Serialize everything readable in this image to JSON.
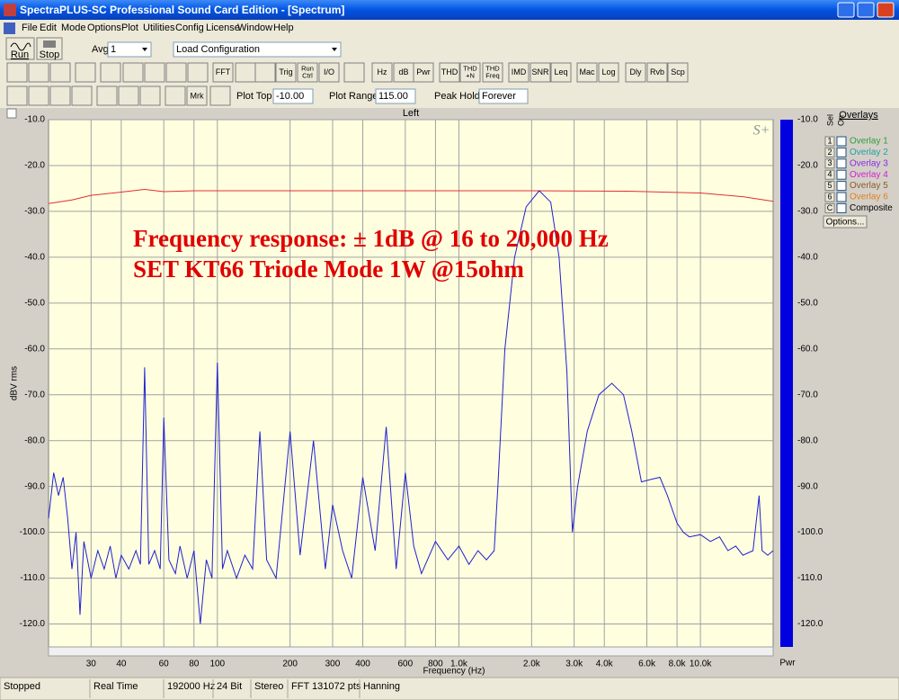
{
  "window": {
    "title": "SpectraPLUS-SC Professional Sound Card Edition - [Spectrum]"
  },
  "menu": [
    "File",
    "Edit",
    "Mode",
    "Options",
    "Plot",
    "Utilities",
    "Config",
    "License",
    "Window",
    "Help"
  ],
  "toolbar": {
    "run": "Run",
    "stop": "Stop",
    "avg_label": "Avg",
    "avg_value": "1",
    "config": "Load Configuration",
    "buttons": [
      "FFT",
      "Trig",
      "Run Ctrl",
      "I/O",
      "Hz",
      "dB",
      "Pwr",
      "THD",
      "THD +N",
      "THD Freq",
      "IMD",
      "SNR",
      "Leq",
      "Mac",
      "Log",
      "Dly",
      "Rvb",
      "Scp"
    ],
    "mrk": "Mrk",
    "plot_top_label": "Plot Top:",
    "plot_top": "-10.00",
    "plot_range_label": "Plot Range:",
    "plot_range": "115.00",
    "peak_hold_label": "Peak Hold:",
    "peak_hold": "Forever"
  },
  "overlays": {
    "title": "Overlays",
    "sel": "Sel",
    "on": "On",
    "items": [
      {
        "key": "1",
        "name": "Overlay 1",
        "color": "#2e9b3a"
      },
      {
        "key": "2",
        "name": "Overlay 2",
        "color": "#1fa0a0"
      },
      {
        "key": "3",
        "name": "Overlay 3",
        "color": "#8a2be2"
      },
      {
        "key": "4",
        "name": "Overlay 4",
        "color": "#d020d0"
      },
      {
        "key": "5",
        "name": "Overlay 5",
        "color": "#8b5a2b"
      },
      {
        "key": "6",
        "name": "Overlay 6",
        "color": "#e08020"
      },
      {
        "key": "C",
        "name": "Composite",
        "color": "#000000"
      }
    ],
    "options": "Options..."
  },
  "status": [
    "Stopped",
    "Real Time",
    "192000 Hz",
    "24 Bit",
    "Stereo",
    "FFT 131072 pts",
    "Hanning"
  ],
  "chart_data": {
    "type": "line",
    "channel": "Left",
    "xlabel": "Frequency (Hz)",
    "ylabel": "dBV rms",
    "meter_label": "Pwr",
    "meter_color": "#0000e0",
    "logo": "S+",
    "annotations": [
      "Frequency response: ± 1dB @ 16 to 20,000 Hz",
      "SET KT66 Triode Mode 1W @15ohm"
    ],
    "annotation_color": "#e00000",
    "xscale": "log",
    "xlim": [
      20,
      20000
    ],
    "ylim": [
      -125,
      -10
    ],
    "grid": true,
    "xticks": [
      30,
      40,
      60,
      80,
      100,
      200,
      300,
      400,
      600,
      800,
      {
        "value": 1000,
        "label": "1.0k"
      },
      {
        "value": 2000,
        "label": "2.0k"
      },
      {
        "value": 3000,
        "label": "3.0k"
      },
      {
        "value": 4000,
        "label": "4.0k"
      },
      {
        "value": 6000,
        "label": "6.0k"
      },
      {
        "value": 8000,
        "label": "8.0k"
      },
      {
        "value": 10000,
        "label": "10.0k"
      }
    ],
    "yticks": [
      {
        "value": -10,
        "label": "-10.0"
      },
      {
        "value": -20,
        "label": "-20.0"
      },
      {
        "value": -30,
        "label": "-30.0"
      },
      {
        "value": -40,
        "label": "-40.0"
      },
      {
        "value": -50,
        "label": "-50.0"
      },
      {
        "value": -60,
        "label": "-60.0"
      },
      {
        "value": -70,
        "label": "-70.0"
      },
      {
        "value": -80,
        "label": "-80.0"
      },
      {
        "value": -90,
        "label": "-90.0"
      },
      {
        "value": -100,
        "label": "-100.0"
      },
      {
        "value": -110,
        "label": "-110.0"
      },
      {
        "value": -120,
        "label": "-120.0"
      }
    ],
    "series": [
      {
        "color": "#e03030",
        "x": [
          20,
          25,
          30,
          40,
          50,
          60,
          80,
          100,
          200,
          500,
          1000,
          2000,
          5000,
          10000,
          15000,
          20000
        ],
        "values": [
          -28.3,
          -27.5,
          -26.5,
          -25.8,
          -25.2,
          -25.7,
          -25.5,
          -25.5,
          -25.5,
          -25.5,
          -25.5,
          -25.5,
          -25.6,
          -26.0,
          -26.8,
          -27.8
        ]
      },
      {
        "color": "#2020d0",
        "x": [
          20,
          21,
          22,
          23,
          24,
          25,
          26,
          27,
          28,
          30,
          32,
          34,
          36,
          38,
          40,
          43,
          46,
          48,
          50,
          52,
          55,
          58,
          60,
          63,
          67,
          70,
          75,
          80,
          85,
          90,
          95,
          100,
          105,
          110,
          120,
          130,
          140,
          150,
          160,
          175,
          200,
          220,
          250,
          280,
          300,
          330,
          360,
          400,
          450,
          500,
          550,
          600,
          650,
          700,
          800,
          900,
          1000,
          1100,
          1200,
          1300,
          1400,
          1450,
          1550,
          1700,
          1900,
          2150,
          2400,
          2600,
          2800,
          2950,
          3100,
          3400,
          3800,
          4300,
          4800,
          5200,
          5700,
          6200,
          6800,
          7300,
          8000,
          8500,
          9000,
          10000,
          11000,
          12000,
          13000,
          14000,
          15000,
          16500,
          17500,
          18000,
          19000,
          20000
        ],
        "values": [
          -97,
          -87,
          -92,
          -88,
          -97,
          -108,
          -100,
          -118,
          -102,
          -110,
          -104,
          -108,
          -103,
          -110,
          -105,
          -108,
          -104,
          -107,
          -64,
          -107,
          -104,
          -108,
          -75,
          -106,
          -109,
          -103,
          -110,
          -104,
          -120,
          -106,
          -110,
          -63,
          -108,
          -104,
          -110,
          -105,
          -108,
          -78,
          -106,
          -110,
          -78,
          -105,
          -80,
          -108,
          -94,
          -104,
          -110,
          -88,
          -104,
          -77,
          -108,
          -87,
          -103,
          -109,
          -102,
          -106,
          -103,
          -107,
          -104,
          -106,
          -104,
          -90,
          -60,
          -40,
          -29,
          -25.5,
          -28,
          -40,
          -65,
          -100,
          -90,
          -78,
          -70,
          -67.5,
          -70,
          -78,
          -89,
          -88.5,
          -88,
          -92,
          -98,
          -100,
          -101,
          -100.5,
          -102,
          -101,
          -104,
          -103,
          -105,
          -104,
          -92,
          -104,
          -105,
          -104
        ]
      }
    ]
  }
}
